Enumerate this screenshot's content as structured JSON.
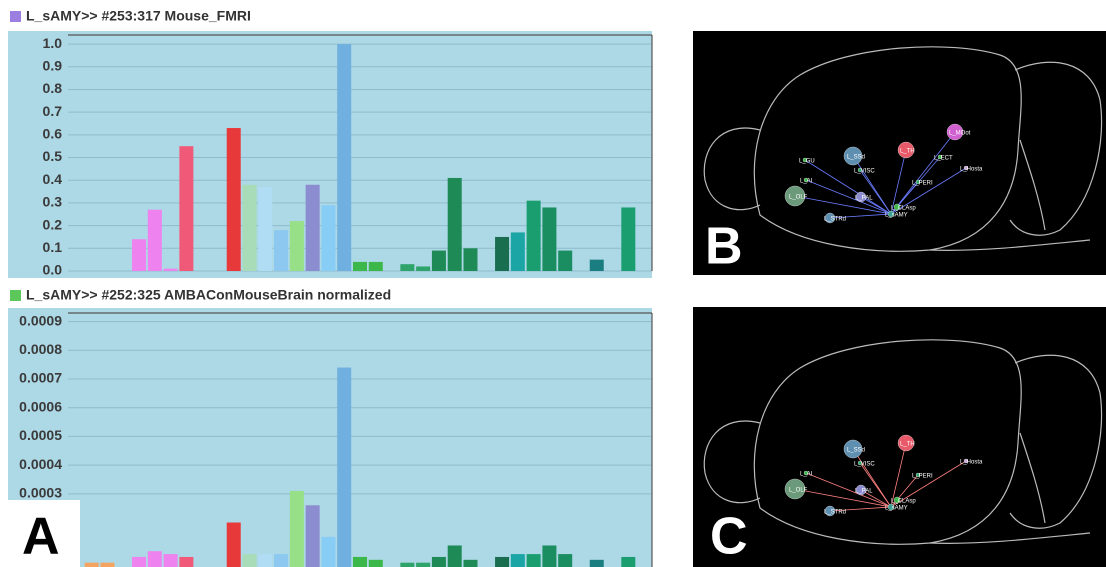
{
  "chart_data": [
    {
      "type": "bar",
      "title": "L_sAMY>> #253:317 Mouse_FMRI",
      "title_color": "#9b7fe0",
      "categories": [
        null,
        null,
        null,
        null,
        null,
        null,
        null,
        null,
        null,
        null,
        null,
        null,
        null,
        null,
        null,
        null,
        null,
        null,
        null,
        null,
        null,
        null,
        null,
        null,
        null,
        null,
        null,
        null,
        null,
        null,
        null,
        null,
        null,
        null,
        null,
        null,
        null
      ],
      "values": [
        null,
        null,
        null,
        null,
        0.14,
        0.27,
        0.01,
        0.55,
        null,
        null,
        0.63,
        0.38,
        0.37,
        0.18,
        0.22,
        0.38,
        0.29,
        1.0,
        0.04,
        0.04,
        null,
        0.03,
        0.02,
        0.09,
        0.41,
        0.1,
        null,
        0.15,
        0.17,
        0.31,
        0.28,
        0.09,
        null,
        0.05,
        null,
        0.28,
        null
      ],
      "colors": [
        null,
        null,
        null,
        null,
        "#ee82ee",
        "#ee82ee",
        "#ee82ee",
        "#f05a78",
        null,
        null,
        "#e8393a",
        "#a8dcb8",
        "#b0dcf4",
        "#8cc8f0",
        "#98e088",
        "#8c8cd0",
        "#88cdf5",
        "#70b0e0",
        "#3cb84a",
        "#3cb84a",
        null,
        "#2ea36a",
        "#2ea36a",
        "#1e8a56",
        "#1e8a56",
        "#1e8a56",
        null,
        "#1a6e50",
        "#1ca5a5",
        "#1a9e70",
        "#1a8e60",
        "#1a8e60",
        null,
        "#1a7e80",
        null,
        "#1a9e70",
        null
      ],
      "ylim": [
        0,
        1.04
      ],
      "yticks": [
        {
          "value": 0,
          "label": "0.0"
        },
        0.1,
        0.2,
        0.3,
        0.4,
        0.5,
        0.6,
        0.7,
        0.8,
        0.9,
        {
          "value": 1,
          "label": "1.0"
        }
      ],
      "grid": true
    },
    {
      "type": "bar",
      "title": "L_sAMY>> #252:325 AMBAConMouseBrain normalized",
      "title_color": "#5cc85c",
      "categories": [
        null,
        null,
        null,
        null,
        null,
        null,
        null,
        null,
        null,
        null,
        null,
        null,
        null,
        null,
        null,
        null,
        null,
        null,
        null,
        null,
        null,
        null,
        null,
        null,
        null,
        null,
        null,
        null,
        null,
        null,
        null,
        null,
        null,
        null,
        null,
        null,
        null
      ],
      "values": [
        null,
        6e-05,
        6e-05,
        null,
        8e-05,
        0.0001,
        9e-05,
        8e-05,
        null,
        null,
        0.0002,
        9e-05,
        9e-05,
        9e-05,
        0.00031,
        0.00026,
        0.00015,
        0.00074,
        8e-05,
        7e-05,
        null,
        6e-05,
        6e-05,
        8e-05,
        0.00012,
        7e-05,
        null,
        8e-05,
        9e-05,
        9e-05,
        0.00012,
        9e-05,
        null,
        7e-05,
        null,
        8e-05,
        null
      ],
      "colors": [
        null,
        "#f4a460",
        "#f4a460",
        null,
        "#ee82ee",
        "#ee82ee",
        "#ee82ee",
        "#f05a78",
        null,
        null,
        "#e8393a",
        "#a8dcb8",
        "#b0dcf4",
        "#8cc8f0",
        "#98e088",
        "#8c8cd0",
        "#88cdf5",
        "#70b0e0",
        "#3cb84a",
        "#3cb84a",
        null,
        "#2ea36a",
        "#2ea36a",
        "#1e8a56",
        "#1e8a56",
        "#1e8a56",
        null,
        "#1a6e50",
        "#1ca5a5",
        "#1a9e70",
        "#1a8e60",
        "#1a8e60",
        null,
        "#1a7e80",
        null,
        "#1a9e70",
        null
      ],
      "ylim": [
        4.5e-05,
        0.00093
      ],
      "yticks": [
        0.0003,
        0.0004,
        0.0005,
        0.0006,
        0.0007,
        0.0008,
        0.0009
      ],
      "grid": true
    }
  ],
  "panels": [
    {
      "label": "A"
    },
    {
      "label": "B",
      "nodes": [
        "L_GU",
        "L_SSd",
        "L_VISC",
        "L_TH",
        "L_MOot",
        "L_ECT",
        "L_AI",
        "L_PERI",
        "L_Hosta",
        "L_PAL",
        "L_OLF",
        "L_STRd",
        "L_CLAsp",
        "L_sAMY"
      ]
    },
    {
      "label": "C",
      "nodes": [
        "L_SSd",
        "L_VISC",
        "L_TH",
        "L_AI",
        "L_PERI",
        "L_Hosta",
        "L_PAL",
        "L_OLF",
        "L_STRd",
        "L_CLAsp",
        "L_sAMY"
      ]
    }
  ]
}
